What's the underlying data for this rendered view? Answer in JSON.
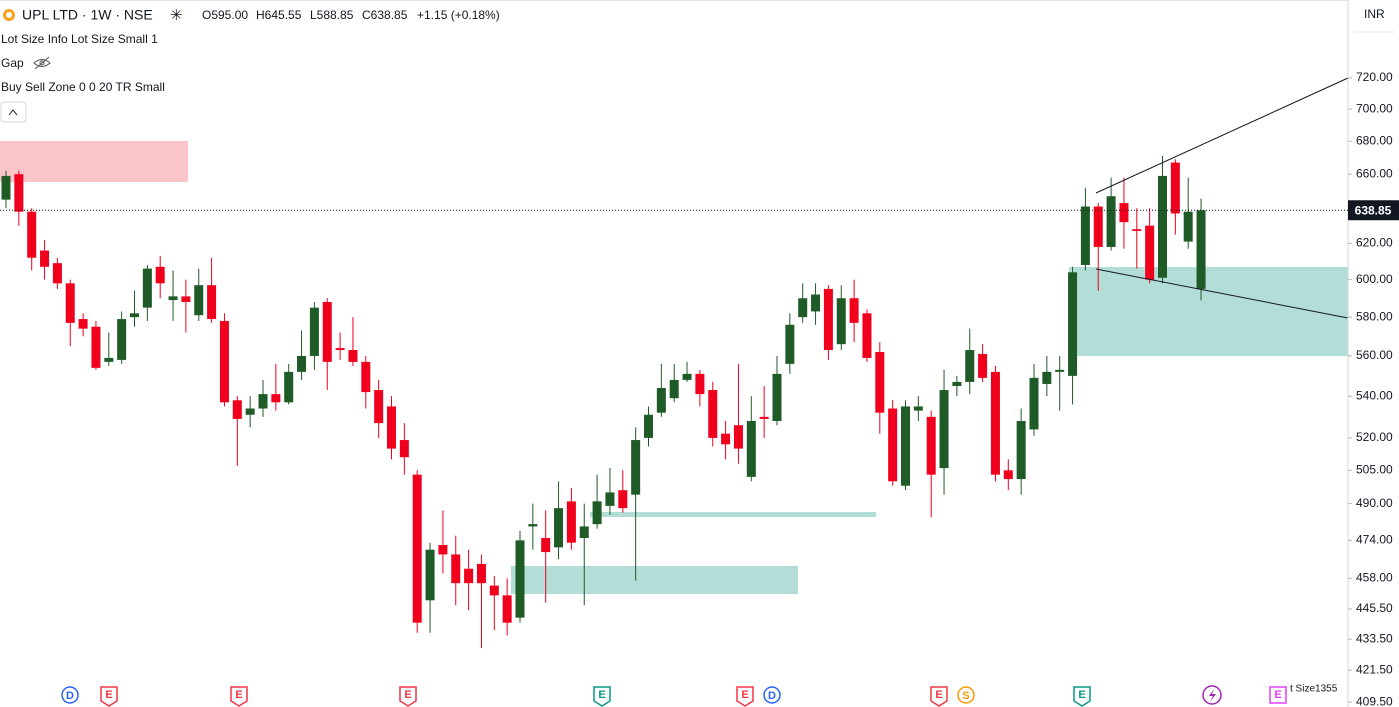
{
  "header": {
    "symbol": "UPL LTD · 1W · NSE",
    "open": "O595.00",
    "high": "H645.55",
    "low": "L588.85",
    "close": "C638.85",
    "change": "+1.15 (+0.18%)"
  },
  "indicators": [
    "Lot Size Info Lot Size Small 1",
    "Gap",
    "Buy Sell Zone 0 0 20 TR Small"
  ],
  "currency": "INR",
  "events": [
    "D",
    "E",
    "E",
    "E",
    "E",
    "E",
    "D",
    "E",
    "S",
    "E",
    "E"
  ],
  "footer_text": "t Size1355",
  "chart_data": {
    "type": "candlestick",
    "log_scale": true,
    "up_color": "#1e5b27",
    "down_color": "#f0001c",
    "ylim": [
      407.7,
      772.6
    ],
    "yticks": [
      {
        "value": 409.5,
        "label": "409.50"
      },
      {
        "value": 421.5,
        "label": "421.50"
      },
      {
        "value": 433.5,
        "label": "433.50"
      },
      {
        "value": 445.5,
        "label": "445.50"
      },
      {
        "value": 458,
        "label": "458.00"
      },
      {
        "value": 474,
        "label": "474.00"
      },
      {
        "value": 490,
        "label": "490.00"
      },
      {
        "value": 505,
        "label": "505.00"
      },
      {
        "value": 520,
        "label": "520.00"
      },
      {
        "value": 540,
        "label": "540.00"
      },
      {
        "value": 560,
        "label": "560.00"
      },
      {
        "value": 580,
        "label": "580.00"
      },
      {
        "value": 600,
        "label": "600.00"
      },
      {
        "value": 620,
        "label": "620.00"
      },
      {
        "value": 660,
        "label": "660.00"
      },
      {
        "value": 680,
        "label": "680.00"
      },
      {
        "value": 700,
        "label": "700.00"
      },
      {
        "value": 720,
        "label": "720.00"
      }
    ],
    "open": [
      645,
      660,
      638,
      616,
      609,
      598,
      579,
      575,
      557,
      558,
      580,
      585,
      607,
      589,
      591,
      581,
      597,
      578,
      538,
      531,
      534,
      541,
      537,
      552,
      560,
      588,
      564,
      563,
      557,
      543,
      535,
      519,
      503,
      449,
      472,
      468,
      462,
      464,
      455,
      451,
      442,
      480,
      475,
      471,
      491,
      475,
      481,
      489,
      496,
      494,
      520,
      532,
      539,
      548,
      551,
      543,
      522,
      526,
      502,
      530,
      528,
      556,
      580,
      583,
      595,
      566,
      590,
      582,
      562,
      534,
      498,
      533,
      530,
      506,
      545,
      547,
      561,
      552,
      505,
      501,
      524,
      546,
      552,
      550,
      608,
      641,
      618,
      643,
      628,
      630,
      601,
      667,
      621,
      595
    ],
    "high": [
      662,
      662,
      640,
      622,
      612,
      600,
      582,
      578,
      572,
      583,
      594,
      608,
      613,
      605,
      600,
      606,
      612,
      582,
      540,
      540,
      548,
      556,
      556,
      573,
      588,
      590,
      572,
      580,
      560,
      548,
      540,
      527,
      505,
      473,
      487,
      476,
      470,
      468,
      459,
      458,
      478,
      490,
      487,
      500,
      497,
      490,
      503,
      506,
      505,
      525,
      535,
      556,
      556,
      557,
      553,
      547,
      528,
      556,
      540,
      545,
      560,
      582,
      598,
      598,
      597,
      597,
      600,
      584,
      567,
      538,
      538,
      540,
      533,
      553,
      550,
      574,
      566,
      555,
      510,
      534,
      556,
      560,
      560,
      607,
      652,
      643,
      658,
      658,
      640,
      640,
      671,
      669,
      658,
      645.55
    ],
    "low": [
      640,
      630,
      605,
      600,
      595,
      565,
      570,
      553,
      555,
      556,
      575,
      578,
      590,
      578,
      572,
      578,
      577,
      535,
      507,
      525,
      530,
      533,
      536,
      548,
      553,
      543,
      558,
      555,
      534,
      520,
      510,
      503,
      436,
      436,
      460,
      447,
      445,
      430,
      437,
      435,
      440,
      470,
      448,
      466,
      470,
      447,
      479,
      485,
      486,
      457,
      516,
      530,
      537,
      547,
      535,
      516,
      510,
      508,
      500,
      520,
      526,
      551,
      577,
      576,
      558,
      563,
      567,
      557,
      522,
      498,
      496,
      528,
      484,
      494,
      540,
      541,
      547,
      500,
      496,
      494,
      521,
      540,
      533,
      536,
      605,
      594,
      616,
      617,
      606,
      598,
      598,
      625,
      617,
      588.85
    ],
    "close": [
      659,
      638,
      612,
      607,
      598,
      577,
      574,
      554,
      559,
      579,
      582,
      606,
      598,
      591,
      588,
      597,
      579,
      537,
      529,
      534,
      541,
      537,
      552,
      560,
      585,
      557,
      563,
      557,
      542,
      527,
      515,
      511,
      440,
      470,
      468,
      456,
      456,
      456,
      451,
      440,
      474,
      481,
      469,
      488,
      473,
      480,
      491,
      495,
      488,
      519,
      531,
      544,
      548,
      551,
      541,
      520,
      517,
      515,
      528,
      529,
      551,
      576,
      590,
      592,
      563,
      590,
      577,
      559,
      532,
      500,
      535,
      535,
      503,
      543,
      547,
      563,
      549,
      503,
      501,
      528,
      549,
      552,
      553,
      604,
      641,
      618,
      647,
      632,
      627,
      600,
      659,
      637,
      638,
      638.85
    ]
  }
}
